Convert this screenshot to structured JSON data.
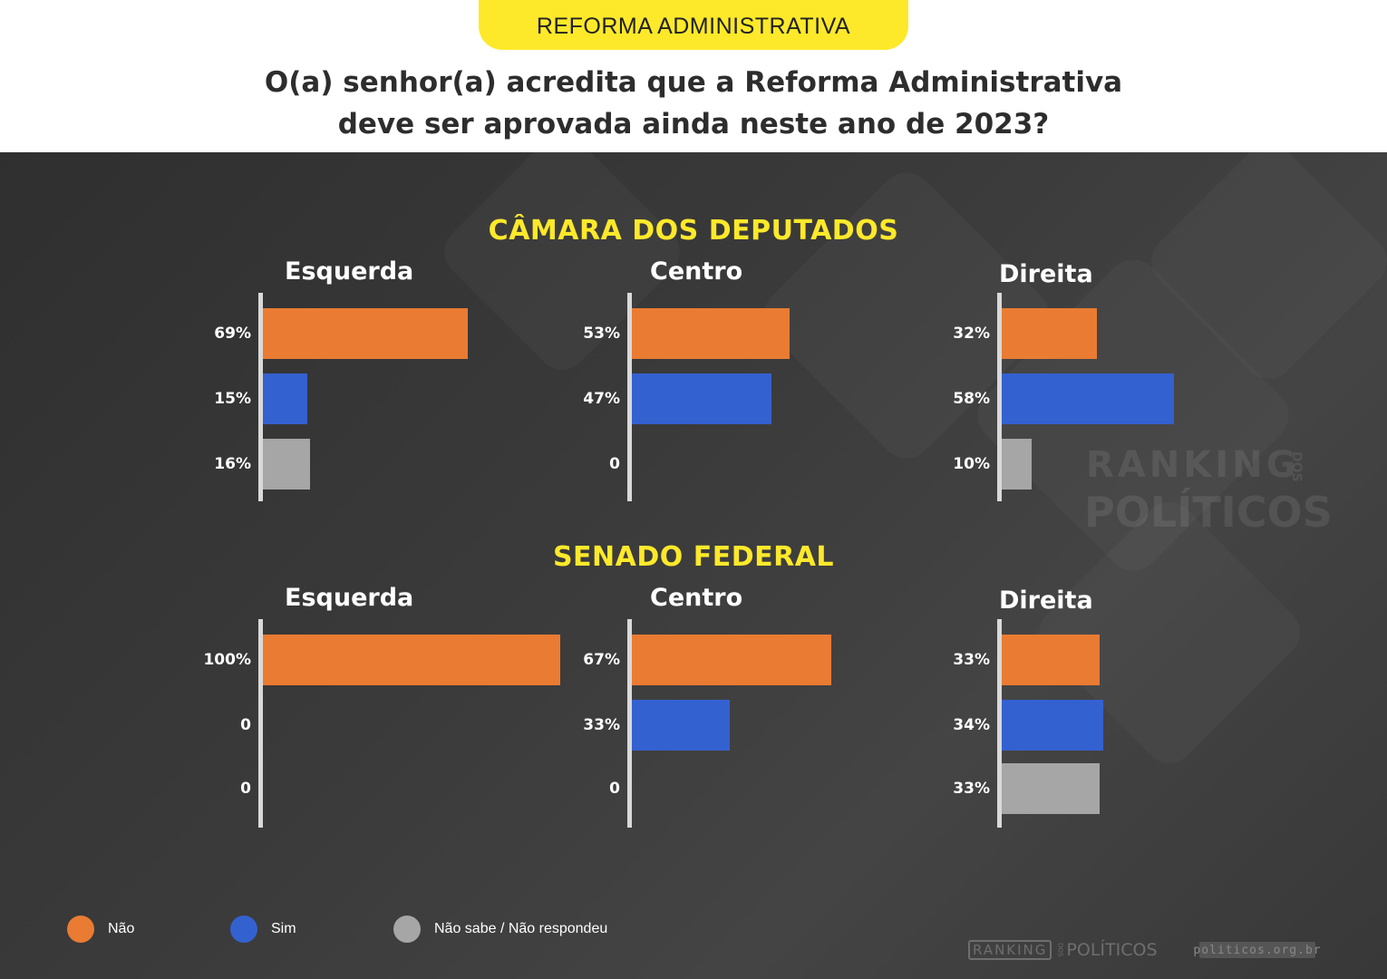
{
  "header": {
    "tag": "REFORMA ADMINISTRATIVA",
    "question_line1": "O(a) senhor(a) acredita que a Reforma Administrativa",
    "question_line2": "deve ser aprovada ainda neste ano de 2023?"
  },
  "colors": {
    "nao": "#ea7b32",
    "sim": "#3461d0",
    "nao_sabe": "#a6a6a6",
    "accent": "#fde92a"
  },
  "chart_data": {
    "type": "bar",
    "orientation": "horizontal",
    "series_names": [
      "Não",
      "Sim",
      "Não sabe / Não respondeu"
    ],
    "xlim": [
      0,
      100
    ],
    "sections": [
      {
        "title": "CÂMARA DOS DEPUTADOS",
        "groups": [
          {
            "name": "Esquerda",
            "values": [
              69,
              15,
              16
            ],
            "labels": [
              "69%",
              "15%",
              "16%"
            ]
          },
          {
            "name": "Centro",
            "values": [
              53,
              47,
              0
            ],
            "labels": [
              "53%",
              "47%",
              "0"
            ]
          },
          {
            "name": "Direita",
            "values": [
              32,
              58,
              10
            ],
            "labels": [
              "32%",
              "58%",
              "10%"
            ]
          }
        ]
      },
      {
        "title": "SENADO FEDERAL",
        "groups": [
          {
            "name": "Esquerda",
            "values": [
              100,
              0,
              0
            ],
            "labels": [
              "100%",
              "0",
              "0"
            ]
          },
          {
            "name": "Centro",
            "values": [
              67,
              33,
              0
            ],
            "labels": [
              "67%",
              "33%",
              "0"
            ]
          },
          {
            "name": "Direita",
            "values": [
              33,
              34,
              33
            ],
            "labels": [
              "33%",
              "34%",
              "33%"
            ]
          }
        ]
      }
    ]
  },
  "legend": {
    "nao": "Não",
    "sim": "Sim",
    "nao_sabe": "Não sabe / Não respondeu"
  },
  "watermark": {
    "word1": "RANKING",
    "word2": "DOS",
    "word3": "POLÍTICOS"
  },
  "footer": {
    "logo_ranking": "RANKING",
    "logo_dos": "DOS",
    "logo_politicos": "POLÍTICOS",
    "url": "politicos.org.br"
  }
}
